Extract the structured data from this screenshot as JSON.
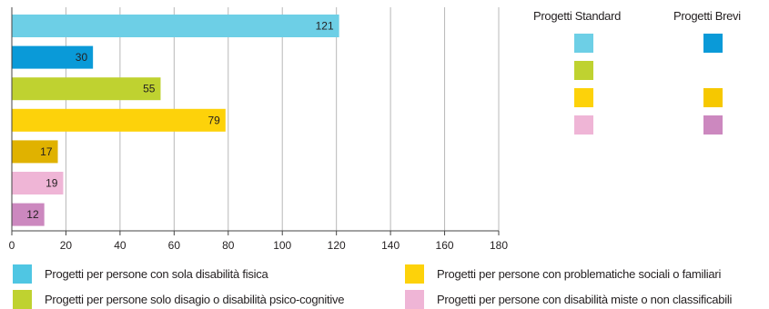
{
  "chart_data": {
    "type": "bar",
    "orientation": "horizontal",
    "xlim": [
      0,
      180
    ],
    "xticks": [
      0,
      20,
      40,
      60,
      80,
      100,
      120,
      140,
      160,
      180
    ],
    "grid": "vertical",
    "bars": [
      {
        "category": "Progetti per persone con sola disabilità fisica",
        "series": "Progetti Standard",
        "value": 121,
        "color": "#6dcfe6"
      },
      {
        "category": "Progetti per persone con sola disabilità fisica",
        "series": "Progetti Brevi",
        "value": 30,
        "color": "#0a9ad8"
      },
      {
        "category": "Progetti per persone solo disagio o disabilità psico-cognitive",
        "series": "Progetti Standard",
        "value": 55,
        "color": "#bfd230"
      },
      {
        "category": "Progetti per persone con problematiche sociali o familiari",
        "series": "Progetti Standard",
        "value": 79,
        "color": "#fdd20a"
      },
      {
        "category": "Progetti per persone con problematiche sociali o familiari",
        "series": "Progetti Brevi",
        "value": 17,
        "color": "#e0b200"
      },
      {
        "category": "Progetti per persone con disabilità miste o non classificabili",
        "series": "Progetti Standard",
        "value": 19,
        "color": "#efb5d6"
      },
      {
        "category": "Progetti per persone con disabilità miste o non classificabili",
        "series": "Progetti Brevi",
        "value": 12,
        "color": "#cc88bf"
      }
    ],
    "key": {
      "standard_title": "Progetti Standard",
      "brevi_title": "Progetti Brevi",
      "standard_colors": [
        "#6dcfe6",
        "#bfd230",
        "#fdd20a",
        "#efb5d6"
      ],
      "brevi_colors": [
        "#0a9ad8",
        null,
        "#f6c800",
        "#cc88bf"
      ]
    },
    "legend": [
      {
        "label": "Progetti per persone con sola disabilità fisica",
        "color": "#4fc6e3"
      },
      {
        "label": "Progetti per persone solo disagio o disabilità psico-cognitive",
        "color": "#bfd230"
      },
      {
        "label": "Progetti per persone con problematiche sociali o familiari",
        "color": "#fdd20a"
      },
      {
        "label": "Progetti per persone con disabilità miste o non classificabili",
        "color": "#efb5d6"
      }
    ]
  }
}
